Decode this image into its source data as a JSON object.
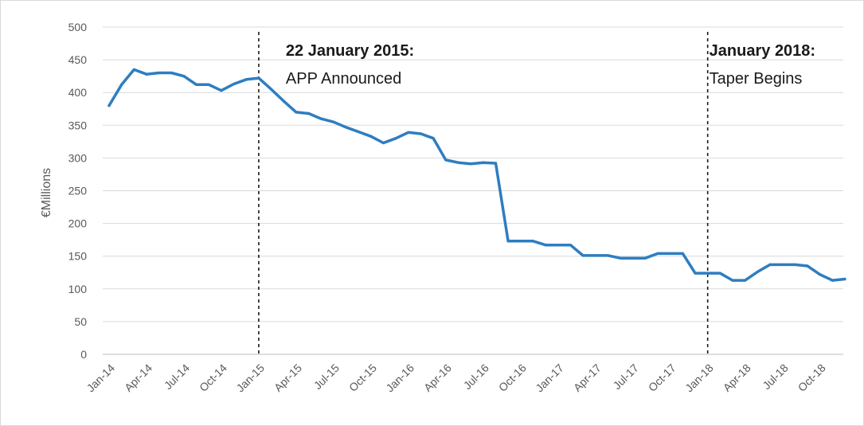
{
  "chart_data": {
    "type": "line",
    "ylabel": "€Millions",
    "xlabel": "",
    "ylim": [
      0,
      500
    ],
    "y_ticks": [
      0,
      50,
      100,
      150,
      200,
      250,
      300,
      350,
      400,
      450,
      500
    ],
    "grid": true,
    "x_tick_labels": [
      "Jan-14",
      "Apr-14",
      "Jul-14",
      "Oct-14",
      "Jan-15",
      "Apr-15",
      "Jul-15",
      "Oct-15",
      "Jan-16",
      "Apr-16",
      "Jul-16",
      "Oct-16",
      "Jan-17",
      "Apr-17",
      "Jul-17",
      "Oct-17",
      "Jan-18",
      "Apr-18",
      "Jul-18",
      "Oct-18"
    ],
    "x": [
      "Jan-14",
      "Feb-14",
      "Mar-14",
      "Apr-14",
      "May-14",
      "Jun-14",
      "Jul-14",
      "Aug-14",
      "Sep-14",
      "Oct-14",
      "Nov-14",
      "Dec-14",
      "Jan-15",
      "Feb-15",
      "Mar-15",
      "Apr-15",
      "May-15",
      "Jun-15",
      "Jul-15",
      "Aug-15",
      "Sep-15",
      "Oct-15",
      "Nov-15",
      "Dec-15",
      "Jan-16",
      "Feb-16",
      "Mar-16",
      "Apr-16",
      "May-16",
      "Jun-16",
      "Jul-16",
      "Aug-16",
      "Sep-16",
      "Oct-16",
      "Nov-16",
      "Dec-16",
      "Jan-17",
      "Feb-17",
      "Mar-17",
      "Apr-17",
      "May-17",
      "Jun-17",
      "Jul-17",
      "Aug-17",
      "Sep-17",
      "Oct-17",
      "Nov-17",
      "Dec-17",
      "Jan-18",
      "Feb-18",
      "Mar-18",
      "Apr-18",
      "May-18",
      "Jun-18",
      "Jul-18",
      "Aug-18",
      "Sep-18",
      "Oct-18",
      "Nov-18",
      "Dec-18"
    ],
    "series": [
      {
        "color": "#2e7dc1",
        "values": [
          380,
          412,
          435,
          428,
          430,
          430,
          425,
          412,
          412,
          403,
          413,
          420,
          422,
          405,
          387,
          370,
          368,
          360,
          355,
          347,
          340,
          333,
          323,
          330,
          339,
          337,
          330,
          297,
          293,
          291,
          293,
          292,
          173,
          173,
          173,
          167,
          167,
          167,
          151,
          151,
          151,
          147,
          147,
          147,
          154,
          154,
          154,
          124,
          124,
          124,
          113,
          113,
          126,
          137,
          137,
          137,
          135,
          122,
          113,
          115
        ]
      }
    ],
    "annotations": [
      {
        "at": "Jan-15",
        "line1": "22 January 2015:",
        "line2": "APP Announced"
      },
      {
        "at": "Jan-18",
        "line1": "January 2018:",
        "line2": "Taper Begins"
      }
    ]
  }
}
